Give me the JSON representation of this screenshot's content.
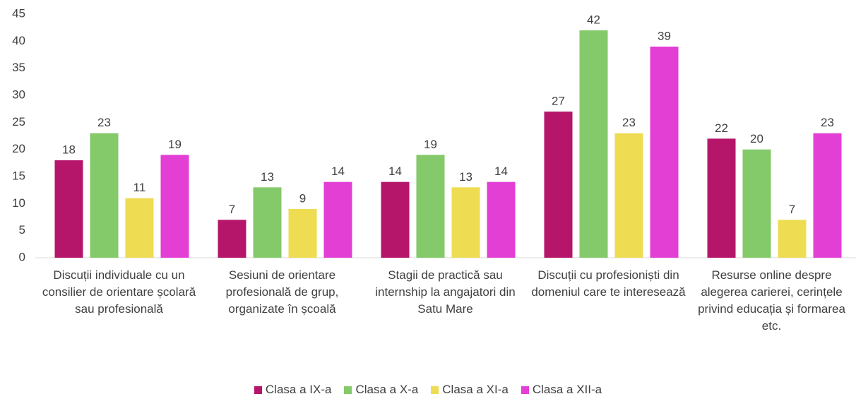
{
  "chart_data": {
    "type": "bar",
    "categories": [
      "Discuții individuale cu un consilier de orientare școlară sau profesională",
      "Sesiuni de orientare profesională de grup, organizate în școală",
      "Stagii de practică sau internship la angajatori din Satu Mare",
      "Discuții cu profesioniști din domeniul care te interesează",
      "Resurse online despre alegerea carierei, cerințele privind educația și formarea etc."
    ],
    "series": [
      {
        "name": "Clasa a IX-a",
        "color": "#b5166a",
        "values": [
          18,
          7,
          14,
          27,
          22
        ]
      },
      {
        "name": "Clasa a X-a",
        "color": "#84c96a",
        "values": [
          23,
          13,
          19,
          42,
          20
        ]
      },
      {
        "name": "Clasa a XI-a",
        "color": "#eedc52",
        "values": [
          11,
          9,
          13,
          23,
          7
        ]
      },
      {
        "name": "Clasa a XII-a",
        "color": "#e33fd4",
        "values": [
          19,
          14,
          14,
          39,
          23
        ]
      }
    ],
    "ylim": [
      0,
      45
    ],
    "yticks": [
      0,
      5,
      10,
      15,
      20,
      25,
      30,
      35,
      40,
      45
    ],
    "grid": false,
    "legend": "bottom"
  }
}
